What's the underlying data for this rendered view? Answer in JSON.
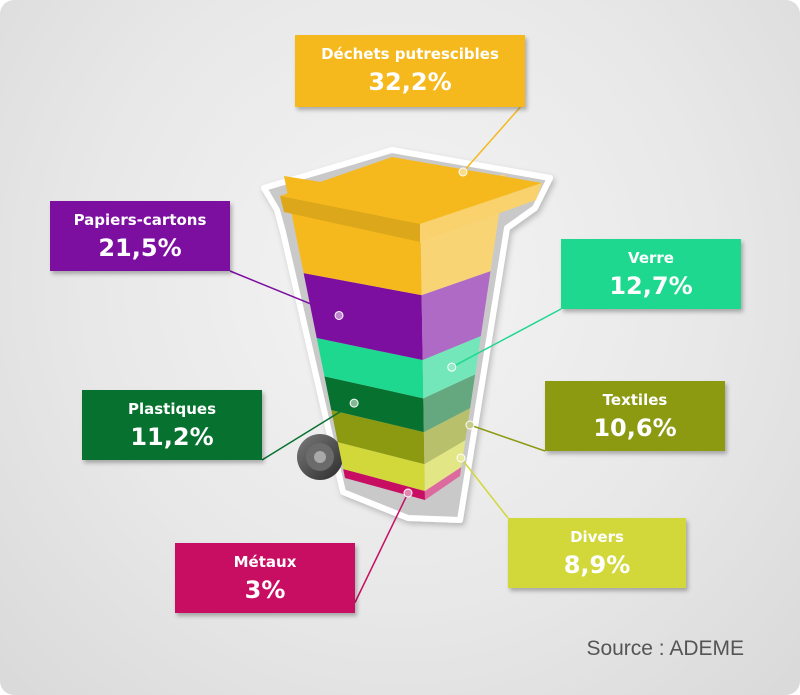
{
  "chart_data": {
    "type": "bar",
    "unit": "%",
    "categories": [
      "Déchets putrescibles",
      "Papiers-cartons",
      "Verre",
      "Plastiques",
      "Textiles",
      "Divers",
      "Métaux"
    ],
    "values": [
      32.2,
      21.5,
      12.7,
      11.2,
      10.6,
      8.9,
      3
    ],
    "value_labels": [
      "32,2%",
      "21,5%",
      "12,7%",
      "11,2%",
      "10,6%",
      "8,9%",
      "3%"
    ],
    "colors": [
      "#f5b91e",
      "#7d0fa0",
      "#1ed88f",
      "#07712f",
      "#8c9a12",
      "#d2d73a",
      "#c80e63"
    ],
    "stack_order_bottom_to_top": [
      "Métaux",
      "Divers",
      "Textiles",
      "Plastiques",
      "Verre",
      "Papiers-cartons",
      "Déchets putrescibles"
    ],
    "source": "Source : ADEME"
  }
}
